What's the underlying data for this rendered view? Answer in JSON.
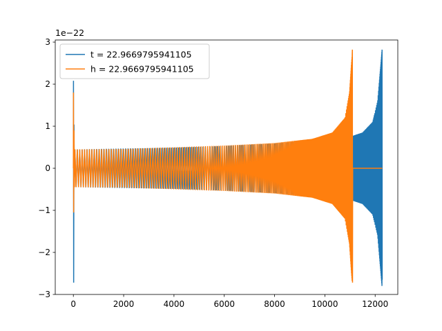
{
  "chart_data": {
    "type": "line",
    "title": "",
    "xlabel": "",
    "ylabel": "",
    "y_offset_label": "1e−22",
    "xlim": [
      -720,
      12900
    ],
    "ylim": [
      -3.0,
      3.05
    ],
    "x_ticks": [
      0,
      2000,
      4000,
      6000,
      8000,
      10000,
      12000
    ],
    "x_tick_labels": [
      "0",
      "2000",
      "4000",
      "6000",
      "8000",
      "10000",
      "12000"
    ],
    "y_ticks": [
      -3,
      -2,
      -1,
      0,
      1,
      2,
      3
    ],
    "y_tick_labels": [
      "−3",
      "−2",
      "−1",
      "0",
      "1",
      "2",
      "3"
    ],
    "legend_position": "top-left",
    "grid": false,
    "series": [
      {
        "name": "t = 22.9669795941105",
        "color": "#1f77b4",
        "description_points": {
          "x_start": 0,
          "x_end": 12280,
          "initial_spike": {
            "x": 0,
            "max": 2.08,
            "min": -2.72
          },
          "envelope": [
            {
              "x": 200,
              "amp": 0.45
            },
            {
              "x": 2000,
              "amp": 0.47
            },
            {
              "x": 4000,
              "amp": 0.49
            },
            {
              "x": 6000,
              "amp": 0.53
            },
            {
              "x": 8000,
              "amp": 0.59
            },
            {
              "x": 9500,
              "amp": 0.66
            },
            {
              "x": 10500,
              "amp": 0.73
            },
            {
              "x": 11100,
              "amp": 0.77
            },
            {
              "x": 11500,
              "amp": 0.85
            },
            {
              "x": 11900,
              "amp": 1.1
            },
            {
              "x": 12100,
              "amp": 1.6
            },
            {
              "x": 12230,
              "amp": 2.5
            },
            {
              "x": 12270,
              "amp": 2.8
            }
          ],
          "final": {
            "x": 12280,
            "max": 2.82,
            "min": -2.65
          }
        }
      },
      {
        "name": "h = 22.9669795941105",
        "color": "#ff7f0e",
        "description_points": {
          "x_start": 0,
          "x_end": 12280,
          "initial_spike": {
            "x": 0,
            "max": 1.8,
            "min": -1.05
          },
          "envelope": [
            {
              "x": 200,
              "amp": 0.45
            },
            {
              "x": 2000,
              "amp": 0.46
            },
            {
              "x": 4000,
              "amp": 0.5
            },
            {
              "x": 6000,
              "amp": 0.54
            },
            {
              "x": 8000,
              "amp": 0.6
            },
            {
              "x": 9500,
              "amp": 0.7
            },
            {
              "x": 10300,
              "amp": 0.85
            },
            {
              "x": 10800,
              "amp": 1.2
            },
            {
              "x": 10980,
              "amp": 1.8
            },
            {
              "x": 11060,
              "amp": 2.5
            },
            {
              "x": 11100,
              "amp": 2.8
            }
          ],
          "merger": {
            "x": 11100,
            "max": 2.82,
            "min": -2.72
          },
          "flat_after": {
            "x_from": 11120,
            "x_to": 12280,
            "y": 0
          }
        }
      }
    ]
  }
}
